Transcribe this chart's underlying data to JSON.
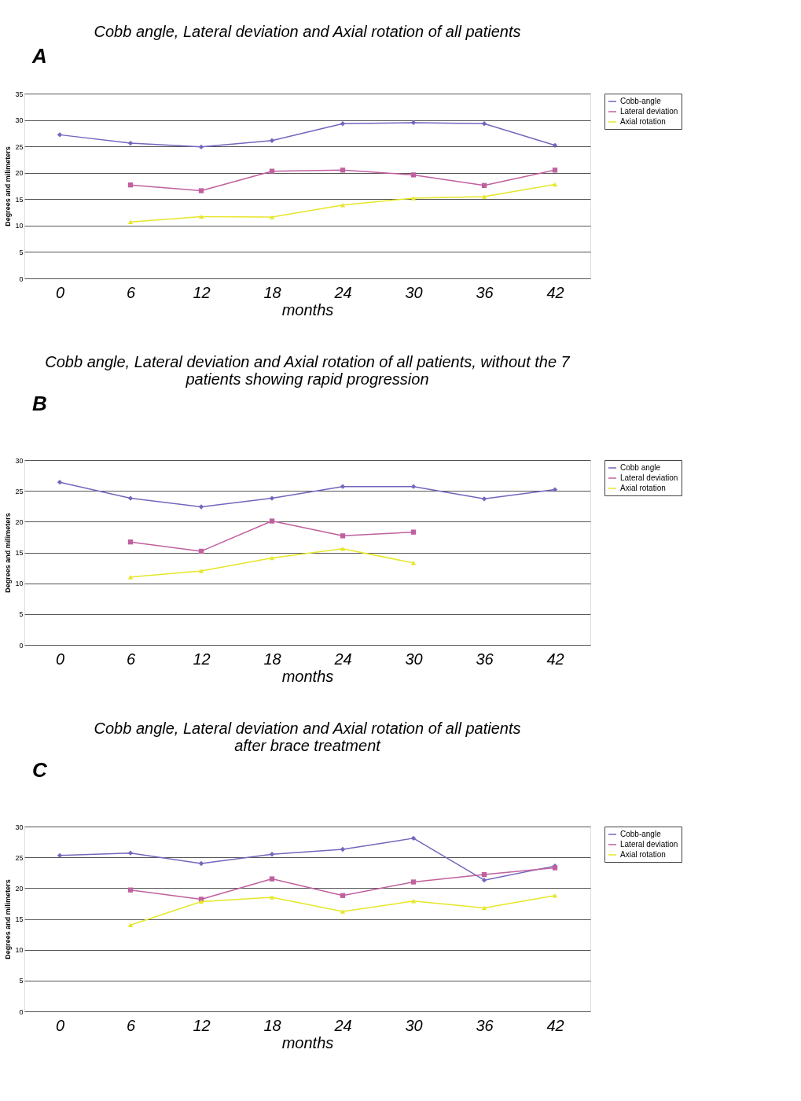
{
  "chart_data": [
    {
      "type": "line",
      "title": "Cobb angle, Lateral deviation and Axial rotation of all patients",
      "annotations": [
        "A"
      ],
      "xlabel": "months",
      "ylabel": "Degrees and milimeters",
      "categories": [
        "0",
        "6",
        "12",
        "18",
        "24",
        "30",
        "36",
        "42"
      ],
      "ylim": [
        0,
        35
      ],
      "yticks": [
        0,
        5,
        10,
        15,
        20,
        25,
        30,
        35
      ],
      "grid": "y",
      "legend": "right",
      "line_style": "solid",
      "series": [
        {
          "name": "Cobb-angle",
          "color": "#7366bd",
          "marker": "diamond",
          "values": [
            27.2,
            25.6,
            24.9,
            26.1,
            29.3,
            29.5,
            29.3,
            25.2
          ]
        },
        {
          "name": "Lateral deviation",
          "color": "#c0609f",
          "marker": "square",
          "values": [
            null,
            17.7,
            16.6,
            20.3,
            20.5,
            19.6,
            17.6,
            20.5
          ]
        },
        {
          "name": "Axial rotation",
          "color": "#e6e62a",
          "marker": "triangle",
          "values": [
            null,
            10.7,
            11.7,
            11.6,
            13.9,
            15.2,
            15.5,
            17.8
          ]
        }
      ]
    },
    {
      "type": "line",
      "title": "Cobb angle, Lateral deviation and Axial rotation of all patients, without the 7\npatients showing rapid progression",
      "annotations": [
        "B"
      ],
      "xlabel": "months",
      "ylabel": "Degrees and milimeters",
      "categories": [
        "0",
        "6",
        "12",
        "18",
        "24",
        "30",
        "36",
        "42"
      ],
      "ylim": [
        0,
        30
      ],
      "yticks": [
        0,
        5,
        10,
        15,
        20,
        25,
        30
      ],
      "grid": "y",
      "legend": "right",
      "line_style": "solid",
      "series": [
        {
          "name": "Cobb angle",
          "color": "#7366bd",
          "marker": "diamond",
          "values": [
            26.4,
            23.8,
            22.4,
            23.8,
            25.7,
            25.7,
            23.7,
            25.2
          ]
        },
        {
          "name": "Lateral deviation",
          "color": "#c0609f",
          "marker": "square",
          "values": [
            null,
            16.7,
            15.2,
            20.1,
            17.7,
            18.3,
            null,
            null
          ]
        },
        {
          "name": "Axial rotation",
          "color": "#e6e62a",
          "marker": "triangle",
          "values": [
            null,
            11.0,
            12.0,
            14.1,
            15.6,
            13.3,
            null,
            null
          ]
        }
      ]
    },
    {
      "type": "line",
      "title": "Cobb angle, Lateral deviation and Axial rotation of all patients\nafter brace treatment",
      "annotations": [
        "C"
      ],
      "xlabel": "months",
      "ylabel": "Degrees and milimeters",
      "categories": [
        "0",
        "6",
        "12",
        "18",
        "24",
        "30",
        "36",
        "42"
      ],
      "ylim": [
        0,
        30
      ],
      "yticks": [
        0,
        5,
        10,
        15,
        20,
        25,
        30
      ],
      "grid": "y",
      "legend": "right",
      "line_style": "solid",
      "series": [
        {
          "name": "Cobb-angle",
          "color": "#7366bd",
          "marker": "diamond",
          "values": [
            25.3,
            25.7,
            24.0,
            25.5,
            26.3,
            28.1,
            21.3,
            23.6
          ]
        },
        {
          "name": "Lateral deviation",
          "color": "#c0609f",
          "marker": "square",
          "values": [
            null,
            19.7,
            18.2,
            21.5,
            18.8,
            21.0,
            22.2,
            23.3
          ]
        },
        {
          "name": "Axial rotation",
          "color": "#e6e62a",
          "marker": "triangle",
          "values": [
            null,
            14.0,
            17.8,
            18.5,
            16.2,
            17.9,
            16.8,
            18.8
          ]
        }
      ]
    }
  ]
}
